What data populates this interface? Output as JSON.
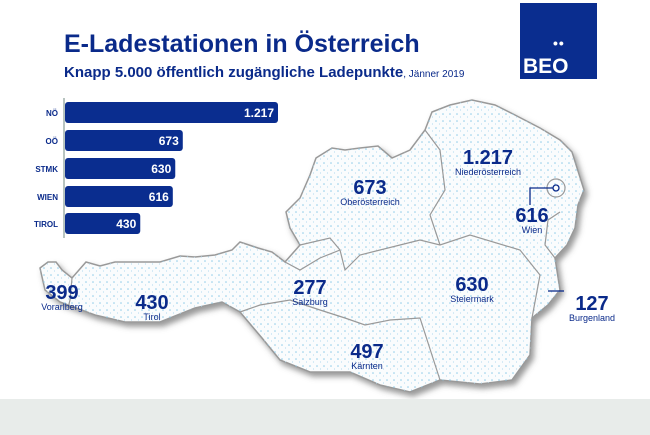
{
  "title": "E-Ladestationen in Österreich",
  "subtitle": "Knapp 5.000 öffentlich zugängliche Ladepunkte",
  "date": ", Jänner 2019",
  "logo": {
    "text": "BEO",
    "dots": "••"
  },
  "colors": {
    "bar": "#0a2d8f",
    "text": "#0a2a8a",
    "footer": "#e8ecea"
  },
  "chart_data": {
    "type": "bar",
    "orientation": "horizontal",
    "categories": [
      "NÖ",
      "OÖ",
      "STMK",
      "WIEN",
      "TIROL"
    ],
    "values": [
      1217,
      673,
      630,
      616,
      430
    ],
    "value_labels": [
      "1.217",
      "673",
      "630",
      "616",
      "430"
    ]
  },
  "map": {
    "regions": [
      {
        "value": "1.217",
        "name": "Niederösterreich"
      },
      {
        "value": "673",
        "name": "Oberösterreich"
      },
      {
        "value": "616",
        "name": "Wien"
      },
      {
        "value": "399",
        "name": "Vorarlberg"
      },
      {
        "value": "430",
        "name": "Tirol"
      },
      {
        "value": "277",
        "name": "Salzburg"
      },
      {
        "value": "630",
        "name": "Steiermark"
      },
      {
        "value": "127",
        "name": "Burgenland"
      },
      {
        "value": "497",
        "name": "Kärnten"
      }
    ]
  }
}
